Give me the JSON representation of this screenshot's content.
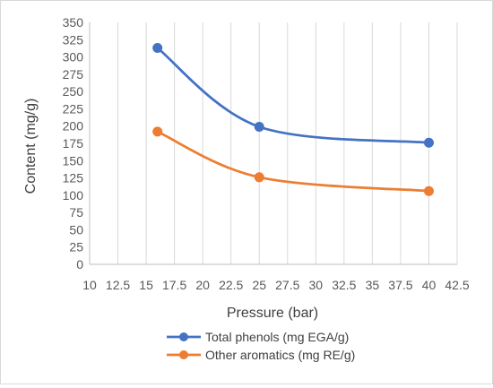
{
  "chart_data": {
    "type": "line",
    "smooth": true,
    "title": "",
    "xlabel": "Pressure (bar)",
    "ylabel": "Content (mg/g)",
    "xlim": [
      10,
      42.5
    ],
    "ylim": [
      0,
      350
    ],
    "x_ticks": [
      "10",
      "12.5",
      "15",
      "17.5",
      "20",
      "22.5",
      "25",
      "27.5",
      "30",
      "32.5",
      "35",
      "37.5",
      "40",
      "42.5"
    ],
    "y_ticks": [
      "0",
      "25",
      "50",
      "75",
      "100",
      "125",
      "150",
      "175",
      "200",
      "225",
      "250",
      "275",
      "300",
      "325",
      "350"
    ],
    "grid": "vertical",
    "legend_position": "bottom",
    "series": [
      {
        "name": "Total phenols (mg EGA/g)",
        "color": "#4472c4",
        "x": [
          16,
          25,
          40
        ],
        "y": [
          313,
          199,
          176
        ]
      },
      {
        "name": "Other aromatics (mg RE/g)",
        "color": "#ed7d31",
        "x": [
          16,
          25,
          40
        ],
        "y": [
          192,
          126,
          106
        ]
      }
    ]
  }
}
